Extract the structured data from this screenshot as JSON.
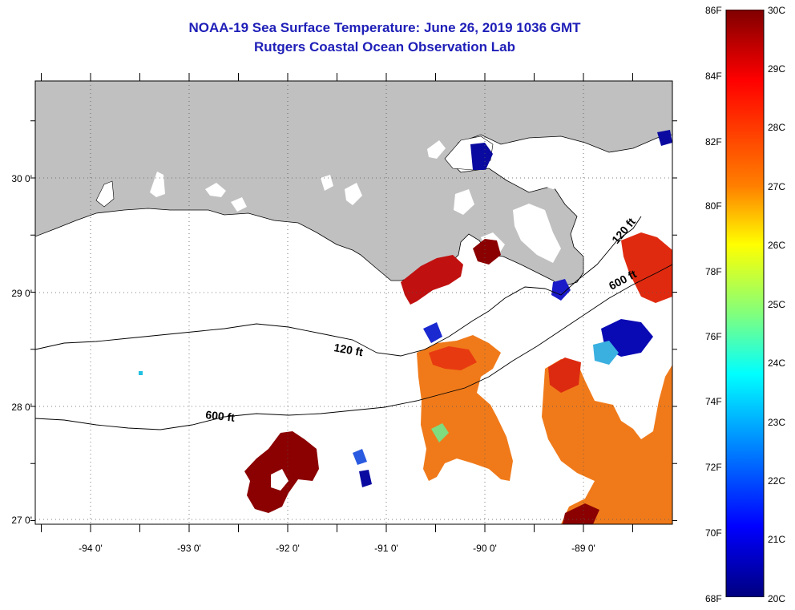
{
  "title": {
    "line1": "NOAA-19 Sea Surface Temperature:  June 26, 2019 1036 GMT",
    "line2": "Rutgers Coastal Ocean Observation Lab"
  },
  "axes": {
    "longitude_ticks": [
      "-94 0'",
      "-93 0'",
      "-92 0'",
      "-91 0'",
      "-90 0'",
      "-89 0'"
    ],
    "latitude_ticks": [
      "30 0'",
      "29 0'",
      "28 0'",
      "27 0'"
    ],
    "lon_range": [
      -94.55,
      -88.1
    ],
    "lat_range": [
      26.95,
      30.85
    ]
  },
  "contours": {
    "label_120": "120 ft",
    "label_600": "600 ft",
    "label_120_east": "120 ft",
    "label_600_east": "600 ft"
  },
  "colorbar": {
    "fahrenheit_labels": [
      "86F",
      "84F",
      "82F",
      "80F",
      "78F",
      "76F",
      "74F",
      "72F",
      "70F",
      "68F"
    ],
    "celsius_labels": [
      "30C",
      "29C",
      "28C",
      "27C",
      "26C",
      "25C",
      "24C",
      "23C",
      "22C",
      "21C",
      "20C"
    ],
    "range_celsius": [
      20,
      30
    ],
    "colors": [
      "#00007f",
      "#0000ff",
      "#007fff",
      "#00ffff",
      "#7fff7f",
      "#ffff00",
      "#ff7f00",
      "#ff0000",
      "#7f0000"
    ]
  },
  "colors": {
    "land": "#c0c0c0",
    "ocean_no_data": "#ffffff",
    "title": "#1f1fb8"
  }
}
